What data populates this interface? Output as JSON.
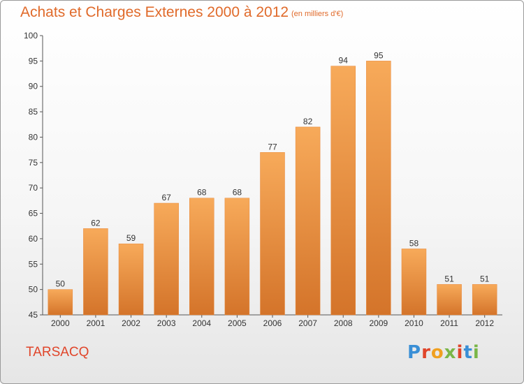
{
  "chart_data": {
    "type": "bar",
    "title": "Achats et Charges Externes 2000 à 2012",
    "subtitle": "(en milliers d'€)",
    "categories": [
      "2000",
      "2001",
      "2002",
      "2003",
      "2004",
      "2005",
      "2006",
      "2007",
      "2008",
      "2009",
      "2010",
      "2011",
      "2012"
    ],
    "values": [
      50,
      62,
      59,
      67,
      68,
      68,
      77,
      82,
      94,
      95,
      58,
      51,
      51
    ],
    "ylim": [
      45,
      100
    ],
    "yticks": [
      45,
      50,
      55,
      60,
      65,
      70,
      75,
      80,
      85,
      90,
      95,
      100
    ],
    "grid": false,
    "bar_color": "#f0973f",
    "bar_color_light": "#f7aa5a",
    "bar_color_dark": "#d4742a",
    "xlabel": "",
    "ylabel": ""
  },
  "footer": {
    "town": "TARSACQ",
    "logo_letters": [
      "P",
      "r",
      "o",
      "x",
      "i",
      "t",
      "i"
    ]
  }
}
